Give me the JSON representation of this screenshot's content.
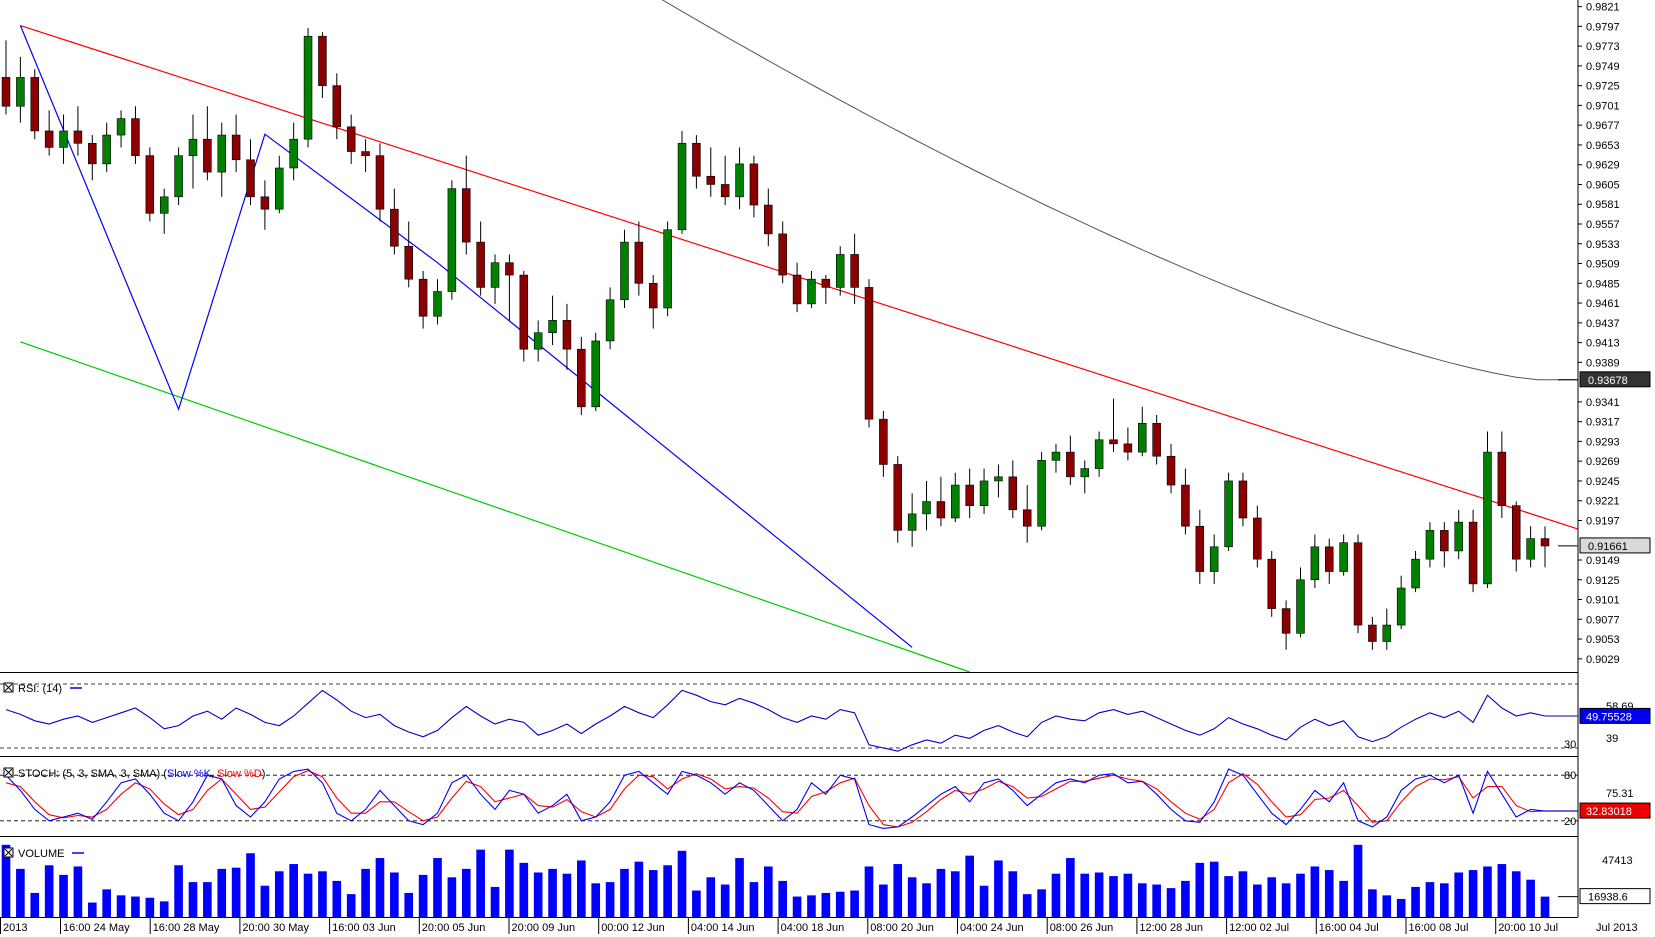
{
  "chart_data": [
    {
      "type": "candlestick",
      "title": "",
      "timeframe_labels": [
        "2013",
        "16:00 24 May",
        "16:00 28 May",
        "20:00 30 May",
        "16:00 03 Jun",
        "20:00 05 Jun",
        "20:00 09 Jun",
        "00:00 12 Jun",
        "04:00 14 Jun",
        "04:00 18 Jun",
        "08:00 20 Jun",
        "04:00 24 Jun",
        "08:00 26 Jun",
        "12:00 28 Jun",
        "12:00 02 Jul",
        "16:00 04 Jul",
        "16:00 08 Jul",
        "20:00 10 Jul"
      ],
      "corner_label": "Jul 2013",
      "price_ticks": [
        "0.9821",
        "0.9797",
        "0.9773",
        "0.9749",
        "0.9725",
        "0.9701",
        "0.9677",
        "0.9653",
        "0.9629",
        "0.9605",
        "0.9581",
        "0.9557",
        "0.9533",
        "0.9509",
        "0.9485",
        "0.9461",
        "0.9437",
        "0.9413",
        "0.9389",
        "0.9341",
        "0.9317",
        "0.9293",
        "0.9269",
        "0.9245",
        "0.9221",
        "0.9197",
        "0.9149",
        "0.9125",
        "0.9101",
        "0.9077",
        "0.9053",
        "0.9029"
      ],
      "ylim": [
        0.9013,
        0.9829
      ],
      "current_price_label": "0.91661",
      "current_price": 0.91661,
      "ma_label": "0.93678",
      "ma_value": 0.93678,
      "bull_color": "#008000",
      "bear_color": "#8b0000",
      "trendlines": {
        "resistance": {
          "color": "#ff0000",
          "points": [
            [
              1,
              0.9798
            ],
            [
              80,
              0.9352
            ]
          ]
        },
        "support": {
          "color": "#00cc00",
          "points": [
            [
              1,
              0.9414
            ],
            [
              67,
              0.9013
            ]
          ]
        },
        "zigzag": {
          "color": "#0000ff",
          "points": [
            [
              1,
              0.9798
            ],
            [
              12,
              0.9332
            ],
            [
              18,
              0.9666
            ],
            [
              30,
              0.951
            ],
            [
              63,
              0.9043
            ]
          ]
        }
      },
      "candles_ohlc": [
        [
          0.9735,
          0.978,
          0.969,
          0.97
        ],
        [
          0.97,
          0.976,
          0.968,
          0.9735
        ],
        [
          0.9735,
          0.9745,
          0.966,
          0.967
        ],
        [
          0.967,
          0.9695,
          0.964,
          0.965
        ],
        [
          0.965,
          0.969,
          0.963,
          0.967
        ],
        [
          0.967,
          0.97,
          0.964,
          0.9655
        ],
        [
          0.9655,
          0.9665,
          0.961,
          0.963
        ],
        [
          0.963,
          0.968,
          0.962,
          0.9665
        ],
        [
          0.9665,
          0.9695,
          0.965,
          0.9685
        ],
        [
          0.9685,
          0.97,
          0.963,
          0.964
        ],
        [
          0.964,
          0.965,
          0.956,
          0.957
        ],
        [
          0.957,
          0.96,
          0.9545,
          0.959
        ],
        [
          0.959,
          0.965,
          0.958,
          0.964
        ],
        [
          0.964,
          0.969,
          0.96,
          0.966
        ],
        [
          0.966,
          0.97,
          0.961,
          0.962
        ],
        [
          0.962,
          0.968,
          0.959,
          0.9665
        ],
        [
          0.9665,
          0.969,
          0.962,
          0.9635
        ],
        [
          0.9635,
          0.966,
          0.958,
          0.959
        ],
        [
          0.959,
          0.961,
          0.955,
          0.9575
        ],
        [
          0.9575,
          0.964,
          0.957,
          0.9625
        ],
        [
          0.9625,
          0.968,
          0.961,
          0.966
        ],
        [
          0.966,
          0.9795,
          0.965,
          0.9785
        ],
        [
          0.9785,
          0.979,
          0.971,
          0.9725
        ],
        [
          0.9725,
          0.974,
          0.966,
          0.9675
        ],
        [
          0.9675,
          0.969,
          0.963,
          0.9645
        ],
        [
          0.9645,
          0.966,
          0.962,
          0.964
        ],
        [
          0.964,
          0.9655,
          0.956,
          0.9575
        ],
        [
          0.9575,
          0.96,
          0.952,
          0.953
        ],
        [
          0.953,
          0.956,
          0.948,
          0.949
        ],
        [
          0.949,
          0.95,
          0.943,
          0.9445
        ],
        [
          0.9445,
          0.949,
          0.9435,
          0.9475
        ],
        [
          0.9475,
          0.961,
          0.9465,
          0.96
        ],
        [
          0.96,
          0.964,
          0.952,
          0.9535
        ],
        [
          0.9535,
          0.956,
          0.947,
          0.948
        ],
        [
          0.948,
          0.952,
          0.946,
          0.951
        ],
        [
          0.951,
          0.952,
          0.944,
          0.9495
        ],
        [
          0.9495,
          0.95,
          0.939,
          0.9405
        ],
        [
          0.9405,
          0.944,
          0.939,
          0.9425
        ],
        [
          0.9425,
          0.947,
          0.941,
          0.944
        ],
        [
          0.944,
          0.946,
          0.938,
          0.9405
        ],
        [
          0.9405,
          0.942,
          0.9325,
          0.9335
        ],
        [
          0.9335,
          0.9425,
          0.933,
          0.9415
        ],
        [
          0.9415,
          0.948,
          0.9405,
          0.9465
        ],
        [
          0.9465,
          0.955,
          0.9455,
          0.9535
        ],
        [
          0.9535,
          0.956,
          0.947,
          0.9485
        ],
        [
          0.9485,
          0.9495,
          0.943,
          0.9455
        ],
        [
          0.9455,
          0.956,
          0.9445,
          0.955
        ],
        [
          0.955,
          0.967,
          0.9545,
          0.9655
        ],
        [
          0.9655,
          0.9665,
          0.96,
          0.9615
        ],
        [
          0.9615,
          0.965,
          0.959,
          0.9605
        ],
        [
          0.9605,
          0.964,
          0.958,
          0.959
        ],
        [
          0.959,
          0.965,
          0.9575,
          0.963
        ],
        [
          0.963,
          0.964,
          0.9565,
          0.958
        ],
        [
          0.958,
          0.96,
          0.953,
          0.9545
        ],
        [
          0.9545,
          0.956,
          0.9485,
          0.9495
        ],
        [
          0.9495,
          0.951,
          0.945,
          0.946
        ],
        [
          0.946,
          0.95,
          0.9455,
          0.949
        ],
        [
          0.949,
          0.9495,
          0.946,
          0.948
        ],
        [
          0.948,
          0.953,
          0.947,
          0.952
        ],
        [
          0.952,
          0.9545,
          0.946,
          0.948
        ],
        [
          0.948,
          0.949,
          0.931,
          0.932
        ],
        [
          0.932,
          0.933,
          0.925,
          0.9265
        ],
        [
          0.9265,
          0.9275,
          0.917,
          0.9185
        ],
        [
          0.9185,
          0.923,
          0.9165,
          0.9205
        ],
        [
          0.9205,
          0.9245,
          0.9185,
          0.922
        ],
        [
          0.922,
          0.925,
          0.919,
          0.92
        ],
        [
          0.92,
          0.9255,
          0.9195,
          0.924
        ],
        [
          0.924,
          0.926,
          0.92,
          0.9215
        ],
        [
          0.9215,
          0.926,
          0.9205,
          0.9245
        ],
        [
          0.9245,
          0.9265,
          0.9225,
          0.925
        ],
        [
          0.925,
          0.927,
          0.92,
          0.921
        ],
        [
          0.921,
          0.924,
          0.917,
          0.919
        ],
        [
          0.919,
          0.928,
          0.9185,
          0.927
        ],
        [
          0.927,
          0.929,
          0.9255,
          0.928
        ],
        [
          0.928,
          0.93,
          0.924,
          0.925
        ],
        [
          0.925,
          0.927,
          0.923,
          0.926
        ],
        [
          0.926,
          0.9305,
          0.925,
          0.9295
        ],
        [
          0.9295,
          0.9345,
          0.928,
          0.929
        ],
        [
          0.929,
          0.931,
          0.927,
          0.928
        ],
        [
          0.928,
          0.9335,
          0.9275,
          0.9315
        ],
        [
          0.9315,
          0.9325,
          0.9265,
          0.9275
        ],
        [
          0.9275,
          0.929,
          0.923,
          0.924
        ],
        [
          0.924,
          0.926,
          0.918,
          0.919
        ],
        [
          0.919,
          0.921,
          0.912,
          0.9135
        ],
        [
          0.9135,
          0.918,
          0.912,
          0.9165
        ],
        [
          0.9165,
          0.9255,
          0.916,
          0.9245
        ],
        [
          0.9245,
          0.9255,
          0.919,
          0.92
        ],
        [
          0.92,
          0.9215,
          0.914,
          0.915
        ],
        [
          0.915,
          0.916,
          0.908,
          0.909
        ],
        [
          0.909,
          0.91,
          0.904,
          0.906
        ],
        [
          0.906,
          0.914,
          0.9055,
          0.9125
        ],
        [
          0.9125,
          0.918,
          0.9115,
          0.9165
        ],
        [
          0.9165,
          0.9175,
          0.912,
          0.9135
        ],
        [
          0.9135,
          0.918,
          0.913,
          0.917
        ],
        [
          0.917,
          0.918,
          0.906,
          0.907
        ],
        [
          0.907,
          0.908,
          0.904,
          0.905
        ],
        [
          0.905,
          0.909,
          0.904,
          0.907
        ],
        [
          0.907,
          0.913,
          0.9065,
          0.9115
        ],
        [
          0.9115,
          0.916,
          0.911,
          0.915
        ],
        [
          0.915,
          0.9195,
          0.914,
          0.9185
        ],
        [
          0.9185,
          0.9195,
          0.914,
          0.916
        ],
        [
          0.916,
          0.921,
          0.915,
          0.9195
        ],
        [
          0.9195,
          0.921,
          0.911,
          0.912
        ],
        [
          0.912,
          0.9305,
          0.9115,
          0.928
        ],
        [
          0.928,
          0.9305,
          0.92,
          0.9215
        ],
        [
          0.9215,
          0.922,
          0.9135,
          0.915
        ],
        [
          0.915,
          0.919,
          0.914,
          0.9175
        ],
        [
          0.9175,
          0.919,
          0.914,
          0.9166
        ]
      ]
    },
    {
      "type": "line",
      "indicator": "RSI",
      "label": "RSI: (14)",
      "ticks": [
        "58.69",
        "39",
        "30"
      ],
      "value_label": "49.75528",
      "value": 49.75528,
      "levels": [
        30,
        70
      ],
      "ylim": [
        25,
        75
      ],
      "color": "#0000cc",
      "values": [
        54,
        51,
        47,
        45,
        48,
        50,
        46,
        49,
        52,
        55,
        49,
        42,
        44,
        50,
        53,
        48,
        55,
        51,
        46,
        44,
        50,
        58,
        66,
        60,
        53,
        49,
        51,
        44,
        40,
        37,
        41,
        49,
        56,
        50,
        45,
        48,
        46,
        38,
        41,
        45,
        39,
        45,
        50,
        56,
        52,
        49,
        57,
        66,
        63,
        59,
        57,
        61,
        58,
        54,
        49,
        46,
        50,
        48,
        54,
        52,
        32,
        30,
        28,
        32,
        35,
        33,
        38,
        36,
        41,
        44,
        40,
        37,
        46,
        50,
        48,
        47,
        52,
        54,
        51,
        53,
        49,
        45,
        41,
        38,
        42,
        49,
        45,
        42,
        38,
        35,
        43,
        48,
        44,
        47,
        37,
        34,
        37,
        43,
        48,
        52,
        49,
        53,
        46,
        63,
        55,
        50,
        52,
        50
      ]
    },
    {
      "type": "line",
      "indicator": "Stochastic",
      "label_prefix": "STOCH: (5, 3, SMA, 3, SMA)",
      "label_k": "Slow %K",
      "label_d": "Slow %D",
      "ticks": [
        "80",
        "75.31",
        "20"
      ],
      "value_label": "32.83018",
      "value": 32.83018,
      "levels": [
        20,
        80
      ],
      "ylim": [
        0,
        100
      ],
      "color_k": "#0000ff",
      "color_d": "#ff0000",
      "slow_k": [
        80,
        60,
        35,
        20,
        25,
        30,
        22,
        45,
        70,
        75,
        55,
        30,
        20,
        45,
        80,
        75,
        40,
        25,
        45,
        75,
        85,
        88,
        70,
        30,
        20,
        35,
        60,
        40,
        20,
        15,
        30,
        70,
        80,
        55,
        35,
        60,
        55,
        30,
        40,
        55,
        20,
        25,
        45,
        80,
        85,
        70,
        55,
        85,
        80,
        70,
        55,
        70,
        60,
        40,
        20,
        35,
        70,
        55,
        80,
        75,
        15,
        10,
        12,
        25,
        40,
        55,
        65,
        45,
        70,
        75,
        60,
        40,
        55,
        70,
        75,
        70,
        80,
        82,
        70,
        72,
        55,
        35,
        20,
        18,
        45,
        88,
        80,
        55,
        30,
        15,
        35,
        60,
        45,
        70,
        20,
        12,
        25,
        60,
        75,
        80,
        70,
        80,
        30,
        85,
        55,
        25,
        35,
        32.8
      ],
      "slow_d": [
        70,
        65,
        45,
        28,
        24,
        27,
        25,
        35,
        55,
        70,
        62,
        42,
        28,
        35,
        60,
        75,
        55,
        35,
        38,
        58,
        78,
        86,
        78,
        50,
        30,
        30,
        45,
        45,
        32,
        20,
        25,
        50,
        72,
        65,
        45,
        50,
        55,
        40,
        38,
        48,
        32,
        25,
        35,
        62,
        80,
        78,
        62,
        75,
        82,
        75,
        62,
        65,
        63,
        50,
        32,
        30,
        52,
        58,
        70,
        76,
        40,
        15,
        12,
        18,
        32,
        48,
        60,
        55,
        62,
        72,
        65,
        50,
        52,
        62,
        72,
        72,
        76,
        80,
        75,
        72,
        62,
        45,
        30,
        22,
        35,
        70,
        82,
        68,
        45,
        25,
        28,
        48,
        50,
        60,
        40,
        18,
        20,
        45,
        65,
        75,
        74,
        78,
        50,
        65,
        65,
        40,
        32,
        33
      ]
    },
    {
      "type": "bar",
      "indicator": "Volume",
      "label": "VOLUME",
      "ticks": [
        "47413"
      ],
      "value_label": "16938.6",
      "value": 16938.6,
      "ylim": [
        0,
        64000
      ],
      "color": "#0000ff",
      "values": [
        60000,
        40000,
        20000,
        43000,
        35000,
        42000,
        12000,
        23000,
        18000,
        17000,
        16000,
        13000,
        43000,
        29000,
        29000,
        40000,
        41000,
        53000,
        26000,
        38000,
        44000,
        36000,
        38000,
        30000,
        19000,
        40000,
        49000,
        37000,
        20000,
        35000,
        49000,
        33000,
        40000,
        56000,
        25000,
        56000,
        45000,
        37000,
        40000,
        36000,
        47000,
        28000,
        29000,
        40000,
        46000,
        39000,
        43000,
        55000,
        22000,
        33000,
        27000,
        49000,
        29000,
        42000,
        30000,
        17000,
        18000,
        20000,
        21000,
        22000,
        42000,
        27000,
        44000,
        33000,
        28000,
        40000,
        38000,
        51000,
        26000,
        47000,
        38000,
        19000,
        23000,
        36000,
        49000,
        36000,
        37000,
        34000,
        36000,
        28000,
        27000,
        24000,
        30000,
        45000,
        46000,
        34000,
        38000,
        27000,
        33000,
        28000,
        36000,
        42000,
        39000,
        30000,
        60000,
        23000,
        18000,
        15000,
        25000,
        29000,
        28000,
        37000,
        39000,
        42000,
        44000,
        38000,
        31000,
        16938.6
      ]
    }
  ]
}
